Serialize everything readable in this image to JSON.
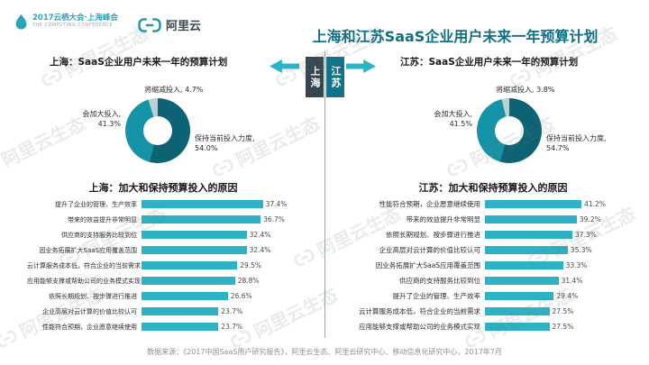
{
  "header": {
    "conference": {
      "line1": "2017云栖大会·上海峰会",
      "line2": "THE COMPUTING CONFERENCE"
    },
    "brand": "阿里云",
    "title": "上海和江苏SaaS企业用户未来一年预算计划"
  },
  "center_labels": {
    "left": "上海",
    "right": "江苏"
  },
  "watermark": {
    "text": "阿里云生态"
  },
  "footer": {
    "source": "数据来源：《2017中国SaaS用户研究报告》，阿里云生态、阿里云研究中心、移动信息化研究中心，2017年7月"
  },
  "colors": {
    "accent": "#2ab4c6",
    "bar": "#2cb2c4",
    "title": "#0f6f83",
    "donut": [
      "#0d6374",
      "#1694a7",
      "#bad0d7"
    ],
    "box_left": "#35464f",
    "box_right": "#11738a"
  },
  "chart_data": [
    {
      "type": "pie",
      "variant": "donut",
      "title": "上海：SaaS企业用户未来一年的预算计划",
      "slices": [
        {
          "label": "保持当前投入力度",
          "value": 54.0,
          "pct": "54.0%"
        },
        {
          "label": "会加大投入",
          "value": 41.3,
          "pct": "41.3%"
        },
        {
          "label": "将缩减投入",
          "value": 4.7,
          "pct": "4.7%"
        }
      ]
    },
    {
      "type": "pie",
      "variant": "donut",
      "title": "江苏：SaaS企业用户未来一年的预算计划",
      "slices": [
        {
          "label": "保持当前投入力度",
          "value": 54.7,
          "pct": "54.7%"
        },
        {
          "label": "会加大投入",
          "value": 41.5,
          "pct": "41.5%"
        },
        {
          "label": "将缩减投入",
          "value": 3.8,
          "pct": "3.8%"
        }
      ]
    },
    {
      "type": "bar",
      "orientation": "horizontal",
      "title": "上海：加大和保持预算投入的原因",
      "xlim": [
        0,
        46
      ],
      "categories": [
        "提升了企业的管理、生产效率",
        "带来的效益提升非常明显",
        "供应商的支持服务比较到位",
        "因业务拓展扩大SaaS应用覆盖范围",
        "云计算服务成本低，符合企业的当前需求",
        "应用能够支撑或帮助公司的业务模式实现",
        "依照长期规划、按步骤进行推进",
        "企业高层对云计算的价值比较认可",
        "性能符合预期，企业愿意继续使用"
      ],
      "values": [
        37.4,
        36.7,
        32.4,
        32.4,
        29.5,
        28.8,
        26.6,
        23.7,
        23.7
      ]
    },
    {
      "type": "bar",
      "orientation": "horizontal",
      "title": "江苏：加大和保持预算投入的原因",
      "xlim": [
        0,
        46
      ],
      "categories": [
        "性能符合预期，企业愿意继续使用",
        "带来的效益提升非常明显",
        "依照长期规划、按步骤进行推进",
        "企业高层对云计算的价值比较认可",
        "因业务拓展扩大SaaS应用覆盖范围",
        "供应商的支持服务比较到位",
        "提升了企业的管理、生产效率",
        "云计算服务成本低，符合企业的当前需求",
        "应用能够支撑或帮助公司的业务模式实现"
      ],
      "values": [
        41.2,
        39.2,
        37.3,
        35.3,
        33.3,
        31.4,
        29.4,
        27.5,
        27.5
      ]
    }
  ]
}
